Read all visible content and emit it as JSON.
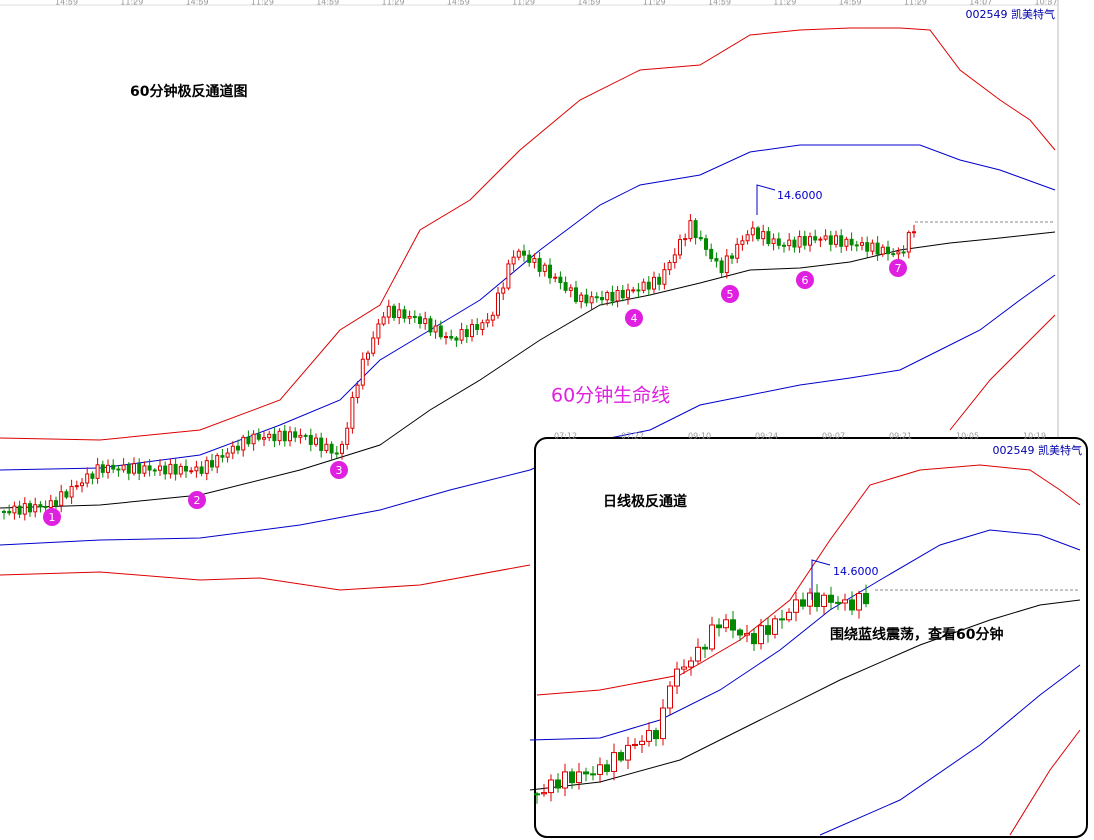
{
  "main_chart": {
    "title": "60分钟极反通道图",
    "lifeline_label": "60分钟生命线",
    "stock_label": "002549 凯美特气",
    "price_label": "14.6000",
    "time_labels": [
      "14:59",
      "11:29",
      "14:59",
      "11:29",
      "14:59",
      "11:29",
      "14:59",
      "11:29",
      "14:59",
      "11:29",
      "14:59",
      "11:29",
      "14:59",
      "11:29",
      "14:07",
      "10:37"
    ],
    "markers": [
      "1",
      "2",
      "3",
      "4",
      "5",
      "6",
      "7"
    ]
  },
  "inset_chart": {
    "title": "日线极反通道",
    "stock_label": "002549 凯美特气",
    "price_label": "14.6000",
    "annotation": "围绕蓝线震荡，查看60分钟",
    "time_labels": [
      "07:12",
      "07:27",
      "09:10",
      "09:24",
      "09:07",
      "09:21",
      "10:05",
      "10:19"
    ]
  }
}
